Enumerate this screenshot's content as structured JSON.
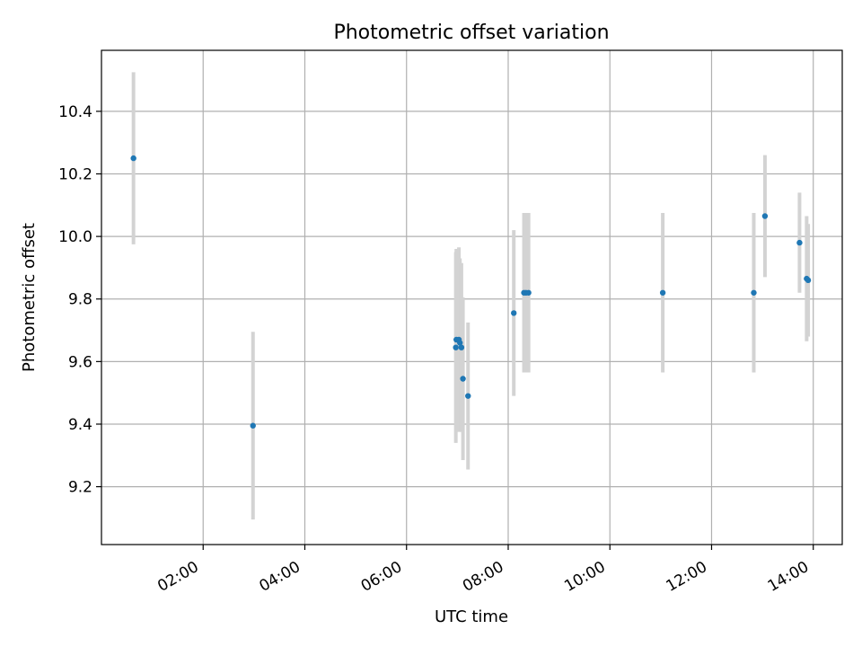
{
  "chart_data": {
    "type": "scatter",
    "title": "Photometric offset variation",
    "xlabel": "UTC time",
    "ylabel": "Photometric offset",
    "x_unit": "hours UTC",
    "xlim": [
      0.0,
      14.57
    ],
    "ylim": [
      9.015,
      10.595
    ],
    "xticks": [
      2,
      4,
      6,
      8,
      10,
      12,
      14
    ],
    "xtick_labels": [
      "02:00",
      "04:00",
      "06:00",
      "08:00",
      "10:00",
      "12:00",
      "14:00"
    ],
    "yticks": [
      9.2,
      9.4,
      9.6,
      9.8,
      10.0,
      10.2,
      10.4
    ],
    "ytick_labels": [
      "9.2",
      "9.4",
      "9.6",
      "9.8",
      "10.0",
      "10.2",
      "10.4"
    ],
    "grid": true,
    "points_color": "#1f77b4",
    "errorbar_color": "#d3d3d3",
    "points": [
      {
        "x": 0.63,
        "y": 10.25,
        "err": 0.275
      },
      {
        "x": 2.98,
        "y": 9.395,
        "err": 0.3
      },
      {
        "x": 6.97,
        "y": 9.645,
        "err": 0.305
      },
      {
        "x": 6.98,
        "y": 9.67,
        "err": 0.29
      },
      {
        "x": 7.03,
        "y": 9.67,
        "err": 0.295
      },
      {
        "x": 7.05,
        "y": 9.66,
        "err": 0.27
      },
      {
        "x": 7.08,
        "y": 9.645,
        "err": 0.27
      },
      {
        "x": 7.11,
        "y": 9.545,
        "err": 0.26
      },
      {
        "x": 7.21,
        "y": 9.49,
        "err": 0.235
      },
      {
        "x": 8.11,
        "y": 9.755,
        "err": 0.265
      },
      {
        "x": 8.31,
        "y": 9.82,
        "err": 0.255
      },
      {
        "x": 8.35,
        "y": 9.82,
        "err": 0.255
      },
      {
        "x": 8.4,
        "y": 9.82,
        "err": 0.255
      },
      {
        "x": 11.04,
        "y": 9.82,
        "err": 0.255
      },
      {
        "x": 12.83,
        "y": 9.82,
        "err": 0.255
      },
      {
        "x": 13.05,
        "y": 10.065,
        "err": 0.195
      },
      {
        "x": 13.73,
        "y": 9.98,
        "err": 0.16
      },
      {
        "x": 13.87,
        "y": 9.865,
        "err": 0.2
      },
      {
        "x": 13.9,
        "y": 9.86,
        "err": 0.18
      }
    ]
  }
}
